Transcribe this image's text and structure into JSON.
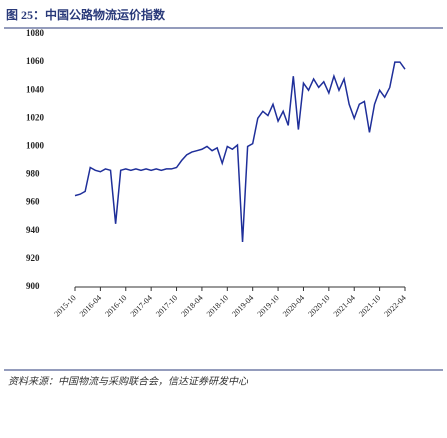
{
  "chart_data": {
    "type": "line",
    "title": "图 25：中国公路物流运价指数",
    "source": "资料来源：中国物流与采购联合会，信达证券研发中心",
    "categories": [
      "2015-10",
      null,
      null,
      null,
      null,
      "2016-04",
      null,
      null,
      null,
      null,
      "2016-10",
      null,
      null,
      null,
      null,
      "2017-04",
      null,
      null,
      null,
      null,
      "2017-10",
      null,
      null,
      null,
      null,
      "2018-04",
      null,
      null,
      null,
      null,
      "2018-10",
      null,
      null,
      null,
      null,
      "2019-04",
      null,
      null,
      null,
      null,
      "2019-10",
      null,
      null,
      null,
      null,
      "2020-04",
      null,
      null,
      null,
      null,
      "2020-10",
      null,
      null,
      null,
      null,
      "2021-04",
      null,
      null,
      null,
      null,
      "2021-10",
      null,
      null,
      null,
      null,
      "2022-04"
    ],
    "series": [
      {
        "name": "中国公路物流运价指数",
        "color": "#1f2f9a",
        "values": [
          965,
          966,
          968,
          985,
          983,
          982,
          984,
          983,
          945,
          983,
          984,
          983,
          984,
          983,
          984,
          983,
          984,
          983,
          984,
          984,
          985,
          990,
          994,
          996,
          997,
          998,
          1000,
          997,
          999,
          988,
          1000,
          998,
          1001,
          932,
          1000,
          1002,
          1020,
          1025,
          1022,
          1030,
          1018,
          1025,
          1015,
          1050,
          1012,
          1045,
          1040,
          1048,
          1042,
          1046,
          1038,
          1050,
          1040,
          1048,
          1030,
          1020,
          1030,
          1032,
          1010,
          1030,
          1040,
          1035,
          1042,
          1060,
          1060,
          1055
        ]
      }
    ],
    "ylim": [
      900,
      1080
    ],
    "yticks": [
      900,
      920,
      940,
      960,
      980,
      1000,
      1020,
      1040,
      1060,
      1080
    ]
  }
}
